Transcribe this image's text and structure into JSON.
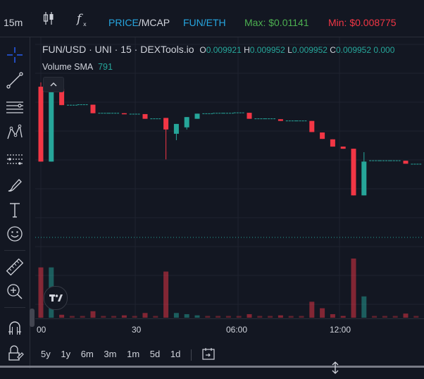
{
  "toolbar": {
    "interval": "15m",
    "price_mcap_label": "PRICE/MCAP",
    "price_mcap_price": "PRICE",
    "price_mcap_slash": "/",
    "price_mcap_mcap": "MCAP",
    "fun_eth_label": "FUN/ETH",
    "max_label": "Max: $0.01141",
    "min_label": "Min: $0.008775",
    "max_color": "#4caf50",
    "min_color": "#f23645",
    "accent_color": "#2196f3",
    "teal_color": "#26a69a"
  },
  "legend": {
    "symbol": "FUN/USD · UNI · 15 · DEXTools.io",
    "open_key": "O",
    "open": "0.009921",
    "high_key": "H",
    "high": "0.009952",
    "low_key": "L",
    "low": "0.009952",
    "close_key": "C",
    "close": "0.009952 0.000",
    "volume_label": "Volume SMA",
    "volume_value": "791"
  },
  "time_axis": {
    "labels": [
      "00",
      "30",
      "06:00",
      "12:00"
    ]
  },
  "ranges": [
    "5y",
    "1y",
    "6m",
    "3m",
    "1m",
    "5d",
    "1d"
  ],
  "sidebar_icons": [
    "crosshair-icon",
    "trendline-icon",
    "horizontal-lines-icon",
    "pattern-icon",
    "forecast-icon",
    "brush-icon",
    "text-icon",
    "emoji-icon",
    "ruler-icon",
    "zoom-in-icon",
    "magnet-icon",
    "lock-drawings-icon"
  ],
  "bottom_icons": [
    "indicators-icon",
    "resize-icon"
  ],
  "chart_data": {
    "type": "candlestick",
    "ylim": [
      0.00875,
      0.01145
    ],
    "candles": [
      {
        "o": 0.01135,
        "h": 0.01145,
        "l": 0.0096,
        "c": 0.0096,
        "dir": "down"
      },
      {
        "o": 0.0096,
        "h": 0.01141,
        "l": 0.0096,
        "c": 0.0113,
        "dir": "up"
      },
      {
        "o": 0.0113,
        "h": 0.0113,
        "l": 0.01092,
        "c": 0.01092,
        "dir": "down"
      },
      {
        "o": 0.01092,
        "h": 0.01092,
        "l": 0.01092,
        "c": 0.01092,
        "dir": "flat"
      },
      {
        "o": 0.01093,
        "h": 0.01093,
        "l": 0.01093,
        "c": 0.01093,
        "dir": "flat"
      },
      {
        "o": 0.01093,
        "h": 0.01093,
        "l": 0.01073,
        "c": 0.01073,
        "dir": "down"
      },
      {
        "o": 0.01073,
        "h": 0.01073,
        "l": 0.01073,
        "c": 0.01073,
        "dir": "flat"
      },
      {
        "o": 0.01073,
        "h": 0.01073,
        "l": 0.01073,
        "c": 0.01073,
        "dir": "flat"
      },
      {
        "o": 0.01073,
        "h": 0.01073,
        "l": 0.01071,
        "c": 0.01071,
        "dir": "down"
      },
      {
        "o": 0.01071,
        "h": 0.01071,
        "l": 0.01071,
        "c": 0.01071,
        "dir": "flat"
      },
      {
        "o": 0.01071,
        "h": 0.01071,
        "l": 0.0106,
        "c": 0.0106,
        "dir": "down"
      },
      {
        "o": 0.0106,
        "h": 0.0106,
        "l": 0.0106,
        "c": 0.0106,
        "dir": "flat"
      },
      {
        "o": 0.01062,
        "h": 0.01062,
        "l": 0.00965,
        "c": 0.01035,
        "dir": "down"
      },
      {
        "o": 0.01025,
        "h": 0.01048,
        "l": 0.0101,
        "c": 0.01048,
        "dir": "up"
      },
      {
        "o": 0.0104,
        "h": 0.01064,
        "l": 0.01035,
        "c": 0.01064,
        "dir": "up"
      },
      {
        "o": 0.0106,
        "h": 0.01072,
        "l": 0.0106,
        "c": 0.01072,
        "dir": "up"
      },
      {
        "o": 0.01072,
        "h": 0.01072,
        "l": 0.01072,
        "c": 0.01072,
        "dir": "flat"
      },
      {
        "o": 0.01073,
        "h": 0.01073,
        "l": 0.01073,
        "c": 0.01073,
        "dir": "flat"
      },
      {
        "o": 0.01073,
        "h": 0.01073,
        "l": 0.01073,
        "c": 0.01073,
        "dir": "flat"
      },
      {
        "o": 0.01074,
        "h": 0.01074,
        "l": 0.01074,
        "c": 0.01074,
        "dir": "flat"
      },
      {
        "o": 0.01074,
        "h": 0.01074,
        "l": 0.0106,
        "c": 0.0106,
        "dir": "down"
      },
      {
        "o": 0.0106,
        "h": 0.0106,
        "l": 0.0106,
        "c": 0.0106,
        "dir": "flat"
      },
      {
        "o": 0.0106,
        "h": 0.0106,
        "l": 0.0106,
        "c": 0.0106,
        "dir": "flat"
      },
      {
        "o": 0.01059,
        "h": 0.01059,
        "l": 0.01055,
        "c": 0.01055,
        "dir": "down"
      },
      {
        "o": 0.01055,
        "h": 0.01055,
        "l": 0.01055,
        "c": 0.01055,
        "dir": "flat"
      },
      {
        "o": 0.01055,
        "h": 0.01055,
        "l": 0.01055,
        "c": 0.01055,
        "dir": "flat"
      },
      {
        "o": 0.01055,
        "h": 0.01055,
        "l": 0.01029,
        "c": 0.01029,
        "dir": "down"
      },
      {
        "o": 0.01028,
        "h": 0.01028,
        "l": 0.01013,
        "c": 0.01013,
        "dir": "down"
      },
      {
        "o": 0.01012,
        "h": 0.01012,
        "l": 0.00995,
        "c": 0.00995,
        "dir": "down"
      },
      {
        "o": 0.00995,
        "h": 0.00995,
        "l": 0.0099,
        "c": 0.0099,
        "dir": "down"
      },
      {
        "o": 0.0099,
        "h": 0.0099,
        "l": 0.00881,
        "c": 0.00881,
        "dir": "down"
      },
      {
        "o": 0.00881,
        "h": 0.00982,
        "l": 0.00881,
        "c": 0.0096,
        "dir": "up"
      },
      {
        "o": 0.00962,
        "h": 0.00962,
        "l": 0.00962,
        "c": 0.00962,
        "dir": "flat"
      },
      {
        "o": 0.00962,
        "h": 0.00962,
        "l": 0.00962,
        "c": 0.00962,
        "dir": "flat"
      },
      {
        "o": 0.00962,
        "h": 0.00962,
        "l": 0.00962,
        "c": 0.00962,
        "dir": "flat"
      },
      {
        "o": 0.00962,
        "h": 0.00962,
        "l": 0.00955,
        "c": 0.00955,
        "dir": "down"
      },
      {
        "o": 0.00954,
        "h": 0.00954,
        "l": 0.00954,
        "c": 0.00954,
        "dir": "flat"
      }
    ],
    "volumes": [
      {
        "v": 0.85,
        "dir": "down"
      },
      {
        "v": 0.85,
        "dir": "up"
      },
      {
        "v": 0.05,
        "dir": "down"
      },
      {
        "v": 0.03,
        "dir": "flat"
      },
      {
        "v": 0.03,
        "dir": "flat"
      },
      {
        "v": 0.11,
        "dir": "down"
      },
      {
        "v": 0.03,
        "dir": "flat"
      },
      {
        "v": 0.03,
        "dir": "flat"
      },
      {
        "v": 0.04,
        "dir": "down"
      },
      {
        "v": 0.03,
        "dir": "flat"
      },
      {
        "v": 0.08,
        "dir": "down"
      },
      {
        "v": 0.03,
        "dir": "flat"
      },
      {
        "v": 0.78,
        "dir": "down"
      },
      {
        "v": 0.08,
        "dir": "up"
      },
      {
        "v": 0.06,
        "dir": "up"
      },
      {
        "v": 0.04,
        "dir": "up"
      },
      {
        "v": 0.03,
        "dir": "flat"
      },
      {
        "v": 0.03,
        "dir": "flat"
      },
      {
        "v": 0.03,
        "dir": "flat"
      },
      {
        "v": 0.03,
        "dir": "flat"
      },
      {
        "v": 0.06,
        "dir": "down"
      },
      {
        "v": 0.03,
        "dir": "flat"
      },
      {
        "v": 0.03,
        "dir": "flat"
      },
      {
        "v": 0.04,
        "dir": "down"
      },
      {
        "v": 0.03,
        "dir": "flat"
      },
      {
        "v": 0.03,
        "dir": "flat"
      },
      {
        "v": 0.27,
        "dir": "down"
      },
      {
        "v": 0.16,
        "dir": "down"
      },
      {
        "v": 0.06,
        "dir": "down"
      },
      {
        "v": 0.03,
        "dir": "down"
      },
      {
        "v": 1.0,
        "dir": "down"
      },
      {
        "v": 0.36,
        "dir": "up"
      },
      {
        "v": 0.03,
        "dir": "flat"
      },
      {
        "v": 0.03,
        "dir": "flat"
      },
      {
        "v": 0.03,
        "dir": "flat"
      },
      {
        "v": 0.07,
        "dir": "down"
      },
      {
        "v": 0.03,
        "dir": "flat"
      }
    ],
    "last_price": 0.00952,
    "up_color": "#26a69a",
    "down_color": "#f23645",
    "grid": true
  }
}
